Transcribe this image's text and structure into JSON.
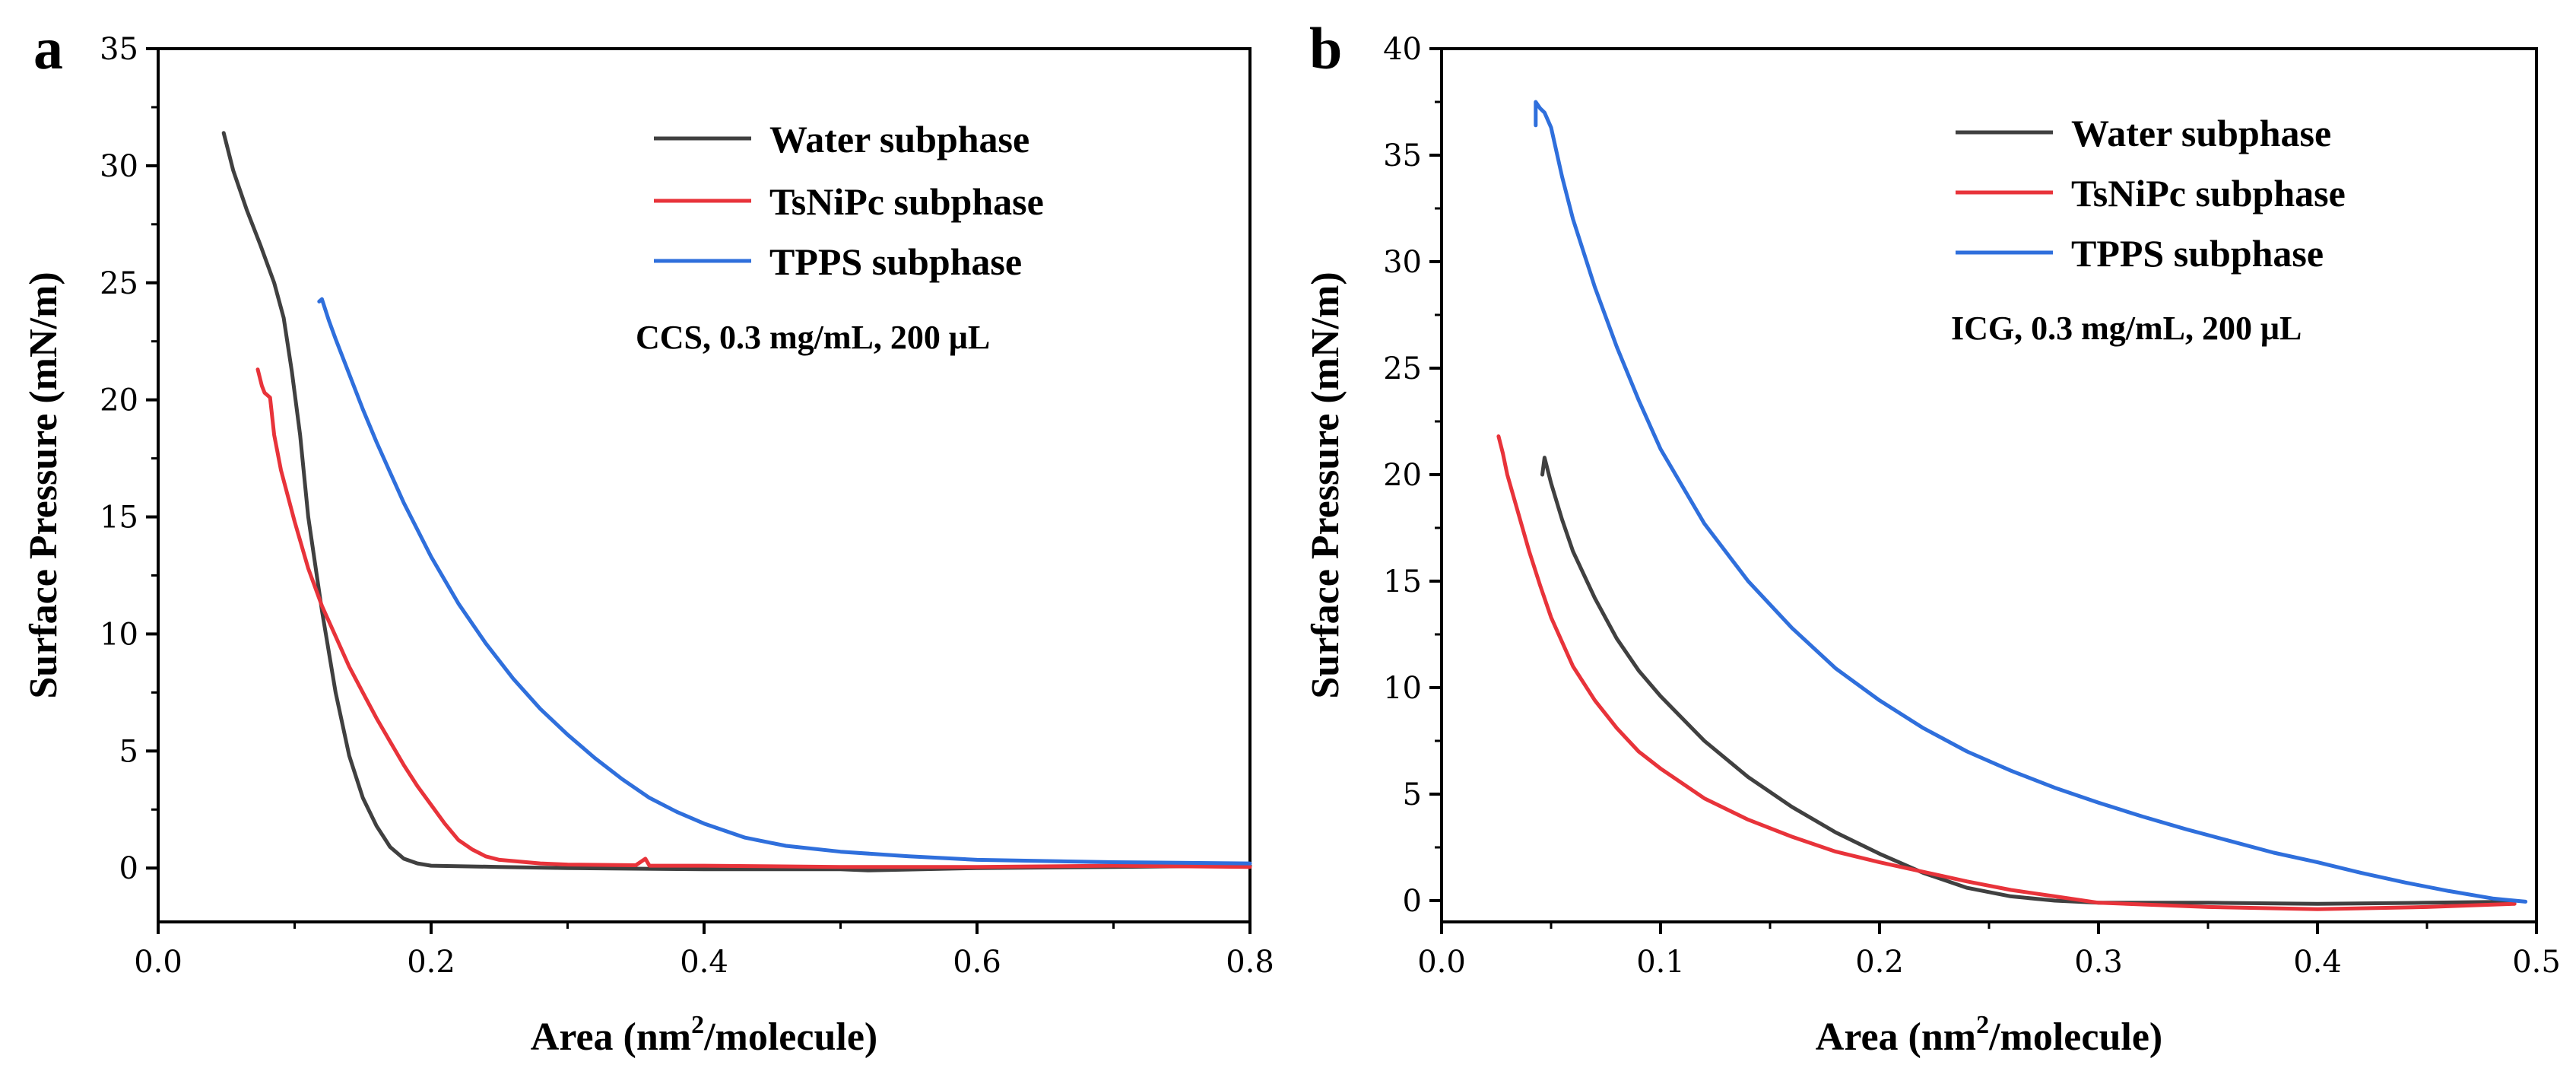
{
  "chart_data": [
    {
      "panel": "a",
      "type": "line",
      "xlabel_prefix": "Area (nm",
      "xlabel_sup": "2",
      "xlabel_suffix": "/molecule)",
      "ylabel": "Surface Pressure (mN/m)",
      "xlim": [
        0.0,
        0.8
      ],
      "ylim": [
        -2.3,
        35
      ],
      "xticks": [
        0.0,
        0.2,
        0.4,
        0.6,
        0.8
      ],
      "xtick_labels": [
        "0.0",
        "0.2",
        "0.4",
        "0.6",
        "0.8"
      ],
      "yticks": [
        0,
        5,
        10,
        15,
        20,
        25,
        30,
        35
      ],
      "ytick_labels": [
        "0",
        "5",
        "10",
        "15",
        "20",
        "25",
        "30",
        "35"
      ],
      "annotation": "CCS, 0.3 mg/mL, 200 μL",
      "legend_position": "top-right",
      "series": [
        {
          "name": "Water subphase",
          "color": "#404040",
          "points": [
            [
              0.048,
              31.4
            ],
            [
              0.055,
              29.8
            ],
            [
              0.065,
              28.1
            ],
            [
              0.075,
              26.6
            ],
            [
              0.085,
              25.0
            ],
            [
              0.092,
              23.5
            ],
            [
              0.098,
              21.2
            ],
            [
              0.104,
              18.5
            ],
            [
              0.11,
              15.0
            ],
            [
              0.12,
              11.0
            ],
            [
              0.13,
              7.5
            ],
            [
              0.14,
              4.8
            ],
            [
              0.15,
              3.0
            ],
            [
              0.16,
              1.8
            ],
            [
              0.17,
              0.9
            ],
            [
              0.18,
              0.4
            ],
            [
              0.19,
              0.2
            ],
            [
              0.2,
              0.1
            ],
            [
              0.25,
              0.05
            ],
            [
              0.3,
              0.0
            ],
            [
              0.4,
              -0.05
            ],
            [
              0.5,
              -0.05
            ],
            [
              0.52,
              -0.1
            ],
            [
              0.6,
              0.0
            ],
            [
              0.7,
              0.05
            ],
            [
              0.8,
              0.1
            ]
          ]
        },
        {
          "name": "TsNiPc subphase",
          "color": "#e8333a",
          "points": [
            [
              0.073,
              21.3
            ],
            [
              0.076,
              20.6
            ],
            [
              0.078,
              20.3
            ],
            [
              0.082,
              20.1
            ],
            [
              0.085,
              18.5
            ],
            [
              0.09,
              17.0
            ],
            [
              0.1,
              14.8
            ],
            [
              0.11,
              12.8
            ],
            [
              0.12,
              11.2
            ],
            [
              0.13,
              9.9
            ],
            [
              0.14,
              8.6
            ],
            [
              0.15,
              7.5
            ],
            [
              0.16,
              6.4
            ],
            [
              0.17,
              5.4
            ],
            [
              0.18,
              4.4
            ],
            [
              0.19,
              3.5
            ],
            [
              0.2,
              2.7
            ],
            [
              0.21,
              1.9
            ],
            [
              0.22,
              1.2
            ],
            [
              0.23,
              0.8
            ],
            [
              0.24,
              0.5
            ],
            [
              0.25,
              0.35
            ],
            [
              0.28,
              0.2
            ],
            [
              0.3,
              0.15
            ],
            [
              0.35,
              0.12
            ],
            [
              0.357,
              0.4
            ],
            [
              0.36,
              0.1
            ],
            [
              0.4,
              0.1
            ],
            [
              0.5,
              0.05
            ],
            [
              0.6,
              0.05
            ],
            [
              0.7,
              0.1
            ],
            [
              0.8,
              0.05
            ]
          ]
        },
        {
          "name": "TPPS subphase",
          "color": "#2f6fdc",
          "points": [
            [
              0.118,
              24.2
            ],
            [
              0.12,
              24.3
            ],
            [
              0.125,
              23.4
            ],
            [
              0.13,
              22.6
            ],
            [
              0.14,
              21.1
            ],
            [
              0.15,
              19.6
            ],
            [
              0.16,
              18.2
            ],
            [
              0.17,
              16.9
            ],
            [
              0.18,
              15.6
            ],
            [
              0.2,
              13.3
            ],
            [
              0.22,
              11.3
            ],
            [
              0.24,
              9.6
            ],
            [
              0.26,
              8.1
            ],
            [
              0.28,
              6.8
            ],
            [
              0.3,
              5.7
            ],
            [
              0.32,
              4.7
            ],
            [
              0.34,
              3.8
            ],
            [
              0.36,
              3.0
            ],
            [
              0.38,
              2.4
            ],
            [
              0.4,
              1.9
            ],
            [
              0.43,
              1.3
            ],
            [
              0.46,
              0.95
            ],
            [
              0.5,
              0.7
            ],
            [
              0.55,
              0.5
            ],
            [
              0.6,
              0.35
            ],
            [
              0.7,
              0.25
            ],
            [
              0.8,
              0.2
            ]
          ]
        }
      ]
    },
    {
      "panel": "b",
      "type": "line",
      "xlabel_prefix": "Area (nm",
      "xlabel_sup": "2",
      "xlabel_suffix": "/molecule)",
      "ylabel": "Surface Pressure (mN/m)",
      "xlim": [
        0.0,
        0.5
      ],
      "ylim": [
        -1.0,
        40
      ],
      "xticks": [
        0.0,
        0.1,
        0.2,
        0.3,
        0.4,
        0.5
      ],
      "xtick_labels": [
        "0.0",
        "0.1",
        "0.2",
        "0.3",
        "0.4",
        "0.5"
      ],
      "yticks": [
        0,
        5,
        10,
        15,
        20,
        25,
        30,
        35,
        40
      ],
      "ytick_labels": [
        "0",
        "5",
        "10",
        "15",
        "20",
        "25",
        "30",
        "35",
        "40"
      ],
      "annotation": "ICG, 0.3 mg/mL, 200 μL",
      "legend_position": "top-right",
      "series": [
        {
          "name": "Water subphase",
          "color": "#404040",
          "points": [
            [
              0.046,
              20.0
            ],
            [
              0.047,
              20.8
            ],
            [
              0.05,
              19.6
            ],
            [
              0.055,
              17.9
            ],
            [
              0.06,
              16.4
            ],
            [
              0.07,
              14.2
            ],
            [
              0.08,
              12.3
            ],
            [
              0.09,
              10.8
            ],
            [
              0.1,
              9.6
            ],
            [
              0.12,
              7.5
            ],
            [
              0.14,
              5.8
            ],
            [
              0.16,
              4.4
            ],
            [
              0.18,
              3.2
            ],
            [
              0.2,
              2.2
            ],
            [
              0.22,
              1.3
            ],
            [
              0.24,
              0.6
            ],
            [
              0.26,
              0.2
            ],
            [
              0.28,
              0.0
            ],
            [
              0.3,
              -0.1
            ],
            [
              0.35,
              -0.1
            ],
            [
              0.4,
              -0.15
            ],
            [
              0.45,
              -0.1
            ],
            [
              0.49,
              -0.05
            ]
          ]
        },
        {
          "name": "TsNiPc subphase",
          "color": "#e8333a",
          "points": [
            [
              0.026,
              21.8
            ],
            [
              0.028,
              21.0
            ],
            [
              0.03,
              20.0
            ],
            [
              0.035,
              18.2
            ],
            [
              0.04,
              16.4
            ],
            [
              0.045,
              14.8
            ],
            [
              0.05,
              13.3
            ],
            [
              0.06,
              11.0
            ],
            [
              0.07,
              9.4
            ],
            [
              0.08,
              8.1
            ],
            [
              0.09,
              7.0
            ],
            [
              0.1,
              6.2
            ],
            [
              0.12,
              4.8
            ],
            [
              0.14,
              3.8
            ],
            [
              0.16,
              3.0
            ],
            [
              0.18,
              2.3
            ],
            [
              0.2,
              1.8
            ],
            [
              0.22,
              1.35
            ],
            [
              0.24,
              0.9
            ],
            [
              0.26,
              0.5
            ],
            [
              0.28,
              0.2
            ],
            [
              0.3,
              -0.1
            ],
            [
              0.35,
              -0.3
            ],
            [
              0.4,
              -0.4
            ],
            [
              0.45,
              -0.3
            ],
            [
              0.49,
              -0.15
            ]
          ]
        },
        {
          "name": "TPPS subphase",
          "color": "#2f6fdc",
          "points": [
            [
              0.043,
              36.4
            ],
            [
              0.043,
              37.5
            ],
            [
              0.045,
              37.2
            ],
            [
              0.047,
              37.0
            ],
            [
              0.05,
              36.3
            ],
            [
              0.055,
              34.0
            ],
            [
              0.06,
              32.0
            ],
            [
              0.07,
              28.8
            ],
            [
              0.08,
              26.0
            ],
            [
              0.09,
              23.5
            ],
            [
              0.1,
              21.2
            ],
            [
              0.12,
              17.7
            ],
            [
              0.14,
              15.0
            ],
            [
              0.16,
              12.8
            ],
            [
              0.18,
              10.9
            ],
            [
              0.2,
              9.4
            ],
            [
              0.22,
              8.1
            ],
            [
              0.24,
              7.0
            ],
            [
              0.26,
              6.1
            ],
            [
              0.28,
              5.3
            ],
            [
              0.3,
              4.6
            ],
            [
              0.32,
              3.95
            ],
            [
              0.34,
              3.35
            ],
            [
              0.36,
              2.8
            ],
            [
              0.38,
              2.25
            ],
            [
              0.4,
              1.8
            ],
            [
              0.42,
              1.3
            ],
            [
              0.44,
              0.85
            ],
            [
              0.46,
              0.45
            ],
            [
              0.48,
              0.1
            ],
            [
              0.495,
              -0.05
            ]
          ]
        }
      ]
    }
  ]
}
